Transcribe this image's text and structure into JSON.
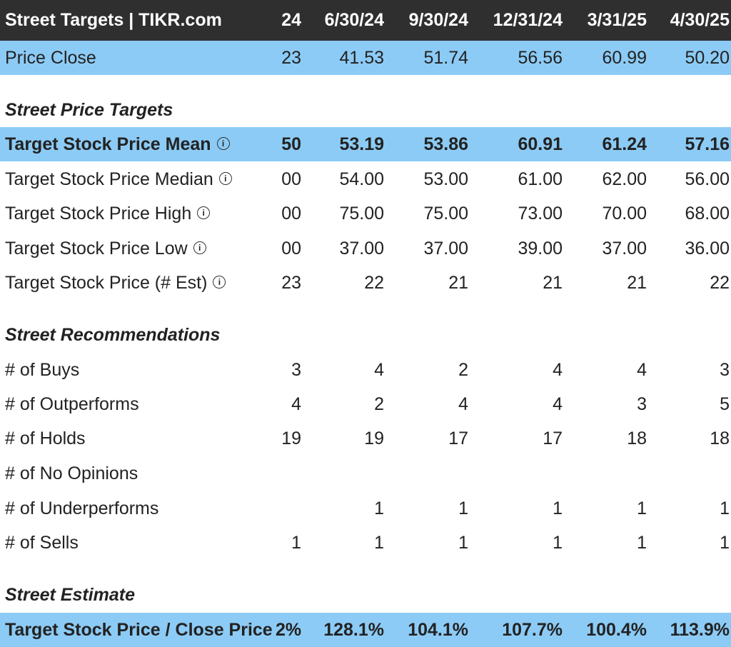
{
  "header": {
    "title": "Street Targets | TIKR.com",
    "columns": [
      "24",
      "6/30/24",
      "9/30/24",
      "12/31/24",
      "3/31/25",
      "4/30/25"
    ]
  },
  "price_close": {
    "label": "Price Close",
    "values": [
      "23",
      "41.53",
      "51.74",
      "56.56",
      "60.99",
      "50.20"
    ]
  },
  "sections": {
    "price_targets": "Street Price Targets",
    "recommendations": "Street Recommendations",
    "estimate": "Street Estimate"
  },
  "price_target_rows": [
    {
      "label": "Target Stock Price Mean",
      "info_icon": "info-icon",
      "values": [
        "50",
        "53.19",
        "53.86",
        "60.91",
        "61.24",
        "57.16"
      ]
    },
    {
      "label": "Target Stock Price Median",
      "info_icon": "info-icon",
      "values": [
        "00",
        "54.00",
        "53.00",
        "61.00",
        "62.00",
        "56.00"
      ]
    },
    {
      "label": "Target Stock Price High",
      "info_icon": "info-icon",
      "values": [
        "00",
        "75.00",
        "75.00",
        "73.00",
        "70.00",
        "68.00"
      ]
    },
    {
      "label": "Target Stock Price Low",
      "info_icon": "info-icon",
      "values": [
        "00",
        "37.00",
        "37.00",
        "39.00",
        "37.00",
        "36.00"
      ]
    },
    {
      "label": "Target Stock Price (# Est)",
      "info_icon": "info-icon",
      "values": [
        "23",
        "22",
        "21",
        "21",
        "21",
        "22"
      ]
    }
  ],
  "recommendation_rows": [
    {
      "label": "# of Buys",
      "values": [
        "3",
        "4",
        "2",
        "4",
        "4",
        "3"
      ]
    },
    {
      "label": "# of Outperforms",
      "values": [
        "4",
        "2",
        "4",
        "4",
        "3",
        "5"
      ]
    },
    {
      "label": "# of Holds",
      "values": [
        "19",
        "19",
        "17",
        "17",
        "18",
        "18"
      ]
    },
    {
      "label": "# of No Opinions",
      "values": [
        "",
        "",
        "",
        "",
        "",
        ""
      ]
    },
    {
      "label": "# of Underperforms",
      "values": [
        "",
        "1",
        "1",
        "1",
        "1",
        "1"
      ]
    },
    {
      "label": "# of Sells",
      "values": [
        "1",
        "1",
        "1",
        "1",
        "1",
        "1"
      ]
    }
  ],
  "estimate_row": {
    "label": "Target Stock Price / Close Price",
    "values": [
      "2%",
      "128.1%",
      "104.1%",
      "107.7%",
      "100.4%",
      "113.9%"
    ]
  },
  "colors": {
    "header_bg": "#2f2f2f",
    "highlight_bg": "#8ccbf5",
    "text": "#222222"
  }
}
